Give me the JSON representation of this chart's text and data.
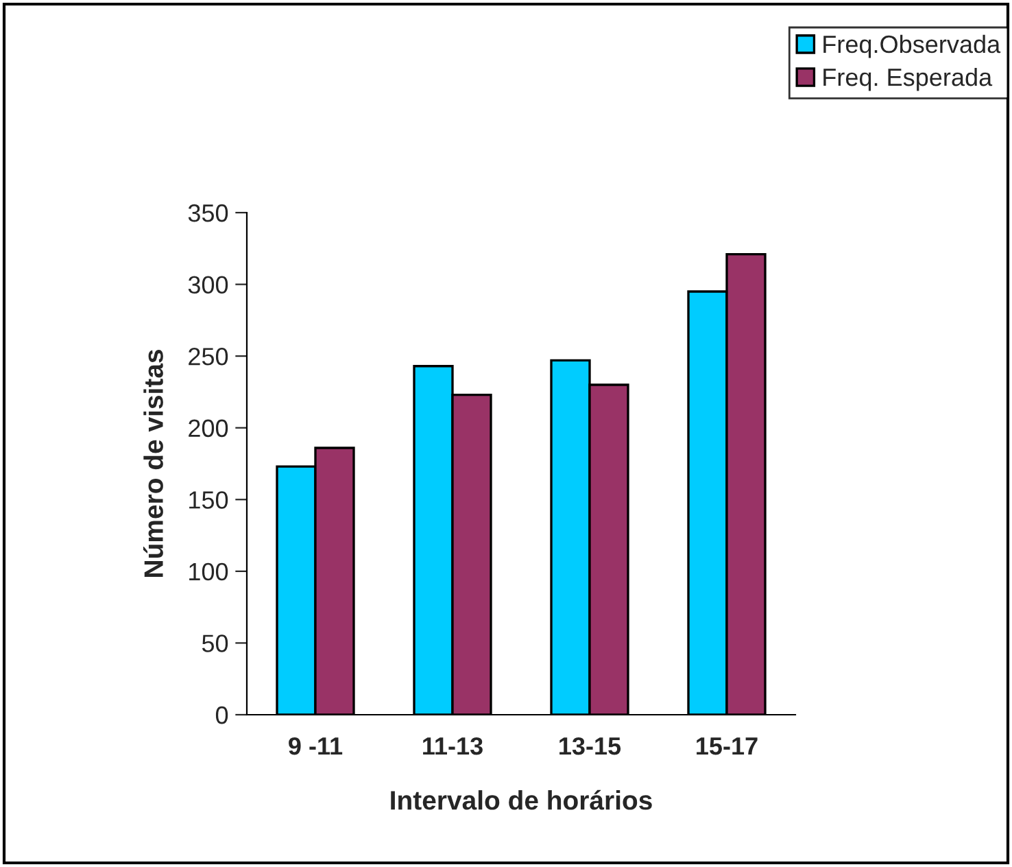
{
  "chart_data": {
    "type": "bar",
    "xlabel": "Intervalo de horários",
    "ylabel": "Número de visitas",
    "categories": [
      "9 -11",
      "11-13",
      "13-15",
      "15-17"
    ],
    "series": [
      {
        "name": "Freq.Observada",
        "color": "#00ccff",
        "values": [
          173,
          243,
          247,
          295
        ]
      },
      {
        "name": "Freq. Esperada",
        "color": "#993366",
        "values": [
          186,
          223,
          230,
          321
        ]
      }
    ],
    "ylim": [
      0,
      350
    ],
    "yticks": [
      0,
      50,
      100,
      150,
      200,
      250,
      300,
      350
    ],
    "grid": false,
    "legend": "top right"
  }
}
